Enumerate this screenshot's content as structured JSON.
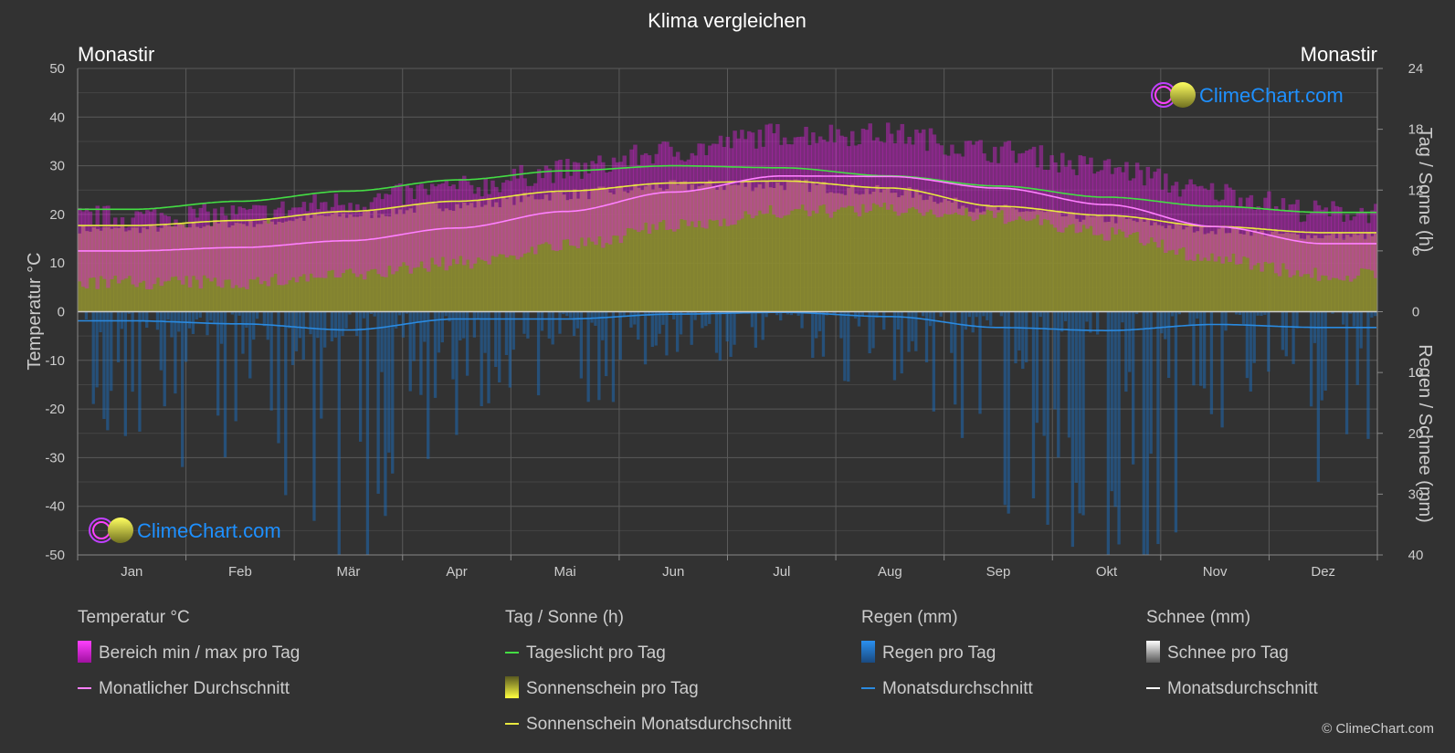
{
  "title": "Klima vergleichen",
  "location_left": "Monastir",
  "location_right": "Monastir",
  "copyright": "© ClimeChart.com",
  "logo_text": "ClimeChart.com",
  "axes": {
    "left_label": "Temperatur °C",
    "right_top_label": "Tag / Sonne (h)",
    "right_bottom_label": "Regen / Schnee (mm)",
    "temp_ticks": [
      "50",
      "40",
      "30",
      "20",
      "10",
      "0",
      "-10",
      "-20",
      "-30",
      "-40",
      "-50"
    ],
    "hours_ticks": [
      "24",
      "18",
      "12",
      "6",
      "0"
    ],
    "rain_ticks": [
      "10",
      "20",
      "30",
      "40"
    ]
  },
  "legend": {
    "temp_head": "Temperatur °C",
    "temp_range": "Bereich min / max pro Tag",
    "temp_avg": "Monatlicher Durchschnitt",
    "sun_head": "Tag / Sonne (h)",
    "daylight": "Tageslicht pro Tag",
    "sunshine": "Sonnenschein pro Tag",
    "sun_avg": "Sonnenschein Monatsdurchschnitt",
    "rain_head": "Regen (mm)",
    "rain_day": "Regen pro Tag",
    "rain_avg": "Monatsdurchschnitt",
    "snow_head": "Schnee (mm)",
    "snow_day": "Schnee pro Tag",
    "snow_avg": "Monatsdurchschnitt"
  },
  "colors": {
    "background": "#323232",
    "temp_range": "#e020e0",
    "temp_avg": "#ff80ff",
    "daylight": "#44dd44",
    "sunshine_fill": "#8c8c30",
    "sunshine_avg": "#e8e840",
    "rain": "#1e6ab4",
    "rain_avg": "#2a8ae0",
    "snow": "#ffffff",
    "logo": "#1e90ff"
  },
  "chart_data": {
    "type": "line",
    "categories": [
      "Jan",
      "Feb",
      "Mär",
      "Apr",
      "Mai",
      "Jun",
      "Jul",
      "Aug",
      "Sep",
      "Okt",
      "Nov",
      "Dez"
    ],
    "temp_ylim": [
      -50,
      50
    ],
    "hours_ylim": [
      0,
      24
    ],
    "rain_ylim": [
      0,
      40
    ],
    "series": [
      {
        "name": "Tageslicht pro Tag",
        "axis": "hours",
        "values": [
          10.1,
          10.9,
          11.9,
          13.0,
          13.9,
          14.4,
          14.2,
          13.4,
          12.4,
          11.3,
          10.4,
          9.8
        ]
      },
      {
        "name": "Sonnenschein Monatsdurchschnitt",
        "axis": "hours",
        "values": [
          8.5,
          9.0,
          9.9,
          10.9,
          11.9,
          12.7,
          12.9,
          12.2,
          10.4,
          9.5,
          8.4,
          7.8
        ]
      },
      {
        "name": "Monatlicher Durchschnitt",
        "axis": "temp",
        "values": [
          12.5,
          13.2,
          14.6,
          17.2,
          20.6,
          24.6,
          27.9,
          27.8,
          25.4,
          22.0,
          17.5,
          14.0
        ]
      },
      {
        "name": "Monatsdurchschnitt",
        "axis": "rain",
        "values": [
          1.5,
          2.0,
          3.0,
          1.2,
          1.2,
          0.4,
          0.1,
          0.8,
          2.6,
          3.1,
          2.1,
          2.6
        ]
      }
    ],
    "temp_range_daily": {
      "min": [
        7.5,
        7.5,
        9.0,
        11.5,
        15.0,
        19.0,
        22.0,
        22.5,
        21.0,
        17.5,
        12.5,
        9.0
      ],
      "max": [
        17.0,
        17.5,
        20.0,
        23.0,
        26.5,
        30.5,
        34.0,
        34.0,
        30.5,
        27.0,
        22.0,
        18.0
      ]
    },
    "sunshine_daily": [
      8.3,
      8.9,
      9.7,
      10.7,
      11.8,
      12.6,
      12.8,
      12.1,
      10.3,
      9.3,
      8.2,
      7.6
    ],
    "rain_daily_scale": [
      6,
      10,
      14,
      6,
      6,
      3,
      2,
      4,
      10,
      14,
      10,
      10
    ],
    "snow_daily": [
      0,
      0,
      0,
      0,
      0,
      0,
      0,
      0,
      0,
      0,
      0,
      0
    ],
    "grid": true,
    "legend_position": "bottom"
  }
}
